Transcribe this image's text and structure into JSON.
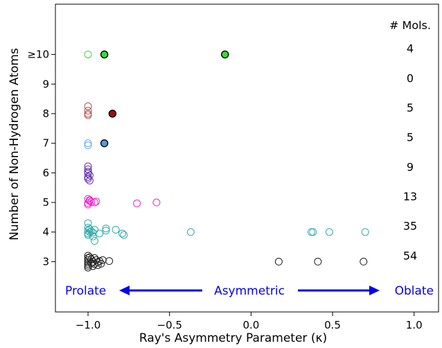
{
  "chart_data": {
    "type": "scatter",
    "xlabel": "Ray's Asymmetry Parameter (κ)",
    "ylabel": "Number of Non-Hydrogen Atoms",
    "xlim": [
      -1.2,
      1.15
    ],
    "ylim": [
      1.3,
      11.7
    ],
    "x_ticks": [
      -1.0,
      -0.5,
      0.0,
      0.5,
      1.0
    ],
    "x_tick_labels": [
      "−1.0",
      "−0.5",
      "0.0",
      "0.5",
      "1.0"
    ],
    "y_ticks": [
      3,
      4,
      5,
      6,
      7,
      8,
      9,
      10
    ],
    "y_tick_labels": [
      "3",
      "4",
      "5",
      "6",
      "7",
      "8",
      "9",
      "≥10"
    ],
    "grid": false,
    "count_header": "# Mols.",
    "counts": [
      {
        "y": 10,
        "value": "4"
      },
      {
        "y": 9,
        "value": "0"
      },
      {
        "y": 8,
        "value": "5"
      },
      {
        "y": 7,
        "value": "5"
      },
      {
        "y": 6,
        "value": "9"
      },
      {
        "y": 5,
        "value": "13"
      },
      {
        "y": 4,
        "value": "35"
      },
      {
        "y": 3,
        "value": "54"
      }
    ],
    "annotations": {
      "left": "Prolate",
      "middle": "Asymmetric",
      "right": "Oblate",
      "color": "#0000ee"
    },
    "series": [
      {
        "y": 10,
        "color": "#33dd33",
        "points": [
          [
            -1.0,
            10.0
          ]
        ]
      },
      {
        "y": 8,
        "color": "#b05555",
        "points": [
          [
            -1.0,
            8.25
          ],
          [
            -1.0,
            8.1
          ],
          [
            -1.0,
            8.0
          ],
          [
            -1.0,
            7.95
          ]
        ]
      },
      {
        "y": 7,
        "color": "#66aaee",
        "points": [
          [
            -1.0,
            7.0
          ],
          [
            -1.0,
            6.93
          ]
        ]
      },
      {
        "y": 6,
        "color": "#6633aa",
        "points": [
          [
            -1.0,
            6.22
          ],
          [
            -1.0,
            6.12
          ],
          [
            -1.0,
            6.04
          ],
          [
            -1.0,
            5.98
          ],
          [
            -0.99,
            5.92
          ],
          [
            -1.0,
            5.86
          ],
          [
            -1.0,
            5.8
          ],
          [
            -0.99,
            5.74
          ]
        ]
      },
      {
        "y": 5,
        "color": "#ee22cc",
        "points": [
          [
            -1.0,
            5.12
          ],
          [
            -0.99,
            5.05
          ],
          [
            -1.0,
            4.98
          ],
          [
            -0.98,
            5.02
          ],
          [
            -0.96,
            5.0
          ],
          [
            -0.95,
            5.03
          ],
          [
            -1.0,
            4.93
          ],
          [
            -0.99,
            5.08
          ],
          [
            -0.7,
            4.97
          ],
          [
            -0.58,
            5.0
          ]
        ]
      },
      {
        "y": 4,
        "color": "#33aaaa",
        "points": [
          [
            -1.0,
            4.3
          ],
          [
            -1.0,
            4.15
          ],
          [
            -1.0,
            4.05
          ],
          [
            -0.99,
            4.0
          ],
          [
            -1.0,
            3.95
          ],
          [
            -0.98,
            4.02
          ],
          [
            -0.97,
            3.98
          ],
          [
            -0.96,
            4.08
          ],
          [
            -1.0,
            3.9
          ],
          [
            -0.99,
            4.1
          ],
          [
            -0.97,
            3.85
          ],
          [
            -0.96,
            3.7
          ],
          [
            -0.93,
            3.95
          ],
          [
            -0.89,
            4.05
          ],
          [
            -0.89,
            4.12
          ],
          [
            -0.83,
            4.08
          ],
          [
            -0.79,
            3.95
          ],
          [
            -0.78,
            3.9
          ],
          [
            -0.37,
            4.0
          ],
          [
            0.37,
            4.0
          ],
          [
            0.38,
            4.0
          ],
          [
            0.48,
            4.0
          ],
          [
            0.7,
            4.0
          ]
        ]
      },
      {
        "y": 3,
        "color": "#222222",
        "points": [
          [
            -1.0,
            3.2
          ],
          [
            -1.0,
            3.12
          ],
          [
            -1.0,
            3.05
          ],
          [
            -1.0,
            2.98
          ],
          [
            -1.0,
            2.92
          ],
          [
            -1.0,
            2.86
          ],
          [
            -1.0,
            2.8
          ],
          [
            -0.99,
            3.15
          ],
          [
            -0.98,
            3.08
          ],
          [
            -0.98,
            2.95
          ],
          [
            -0.97,
            3.0
          ],
          [
            -0.97,
            2.85
          ],
          [
            -0.96,
            3.12
          ],
          [
            -0.96,
            2.92
          ],
          [
            -0.95,
            3.05
          ],
          [
            -0.94,
            2.98
          ],
          [
            -0.94,
            2.88
          ],
          [
            -0.93,
            3.02
          ],
          [
            -0.92,
            2.93
          ],
          [
            -0.91,
            3.05
          ],
          [
            -0.87,
            3.02
          ],
          [
            0.17,
            3.0
          ],
          [
            0.41,
            3.0
          ],
          [
            0.69,
            3.0
          ]
        ]
      }
    ],
    "highlights": [
      {
        "x": -0.9,
        "y": 10,
        "color": "#33dd33"
      },
      {
        "x": -0.16,
        "y": 10,
        "color": "#33dd33"
      },
      {
        "x": -0.85,
        "y": 8,
        "color": "#991111"
      },
      {
        "x": -0.9,
        "y": 7,
        "color": "#5599dd"
      }
    ]
  }
}
